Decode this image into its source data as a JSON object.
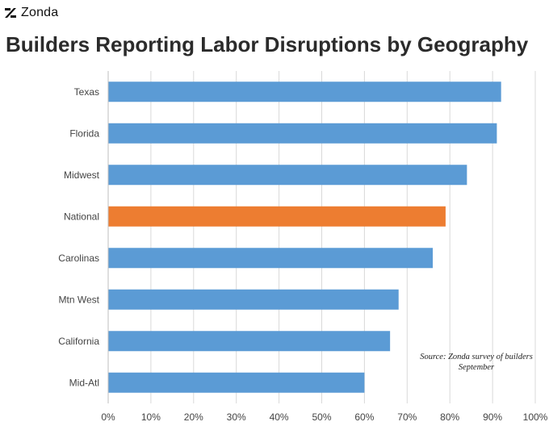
{
  "brand": {
    "name": "Zonda",
    "logo_icon": "zonda-slash-logo"
  },
  "chart_data": {
    "type": "bar",
    "orientation": "horizontal",
    "title": "Builders Reporting Labor Disruptions by Geography",
    "categories": [
      "Texas",
      "Florida",
      "Midwest",
      "National",
      "Carolinas",
      "Mtn West",
      "California",
      "Mid-Atl"
    ],
    "values": [
      0.92,
      0.91,
      0.84,
      0.79,
      0.76,
      0.68,
      0.66,
      0.6
    ],
    "colors": [
      "#5b9bd5",
      "#5b9bd5",
      "#5b9bd5",
      "#ed7d31",
      "#5b9bd5",
      "#5b9bd5",
      "#5b9bd5",
      "#5b9bd5"
    ],
    "xlim": [
      0,
      1
    ],
    "xticks": [
      0,
      0.1,
      0.2,
      0.3,
      0.4,
      0.5,
      0.6,
      0.7,
      0.8,
      0.9,
      1.0
    ],
    "xtick_labels": [
      "0%",
      "10%",
      "20%",
      "30%",
      "40%",
      "50%",
      "60%",
      "70%",
      "80%",
      "90%",
      "100%"
    ],
    "xlabel": "",
    "ylabel": "",
    "grid": "vertical",
    "legend": "none"
  },
  "note": {
    "line1": "Source: Zonda survey of builders",
    "line2": "September"
  }
}
